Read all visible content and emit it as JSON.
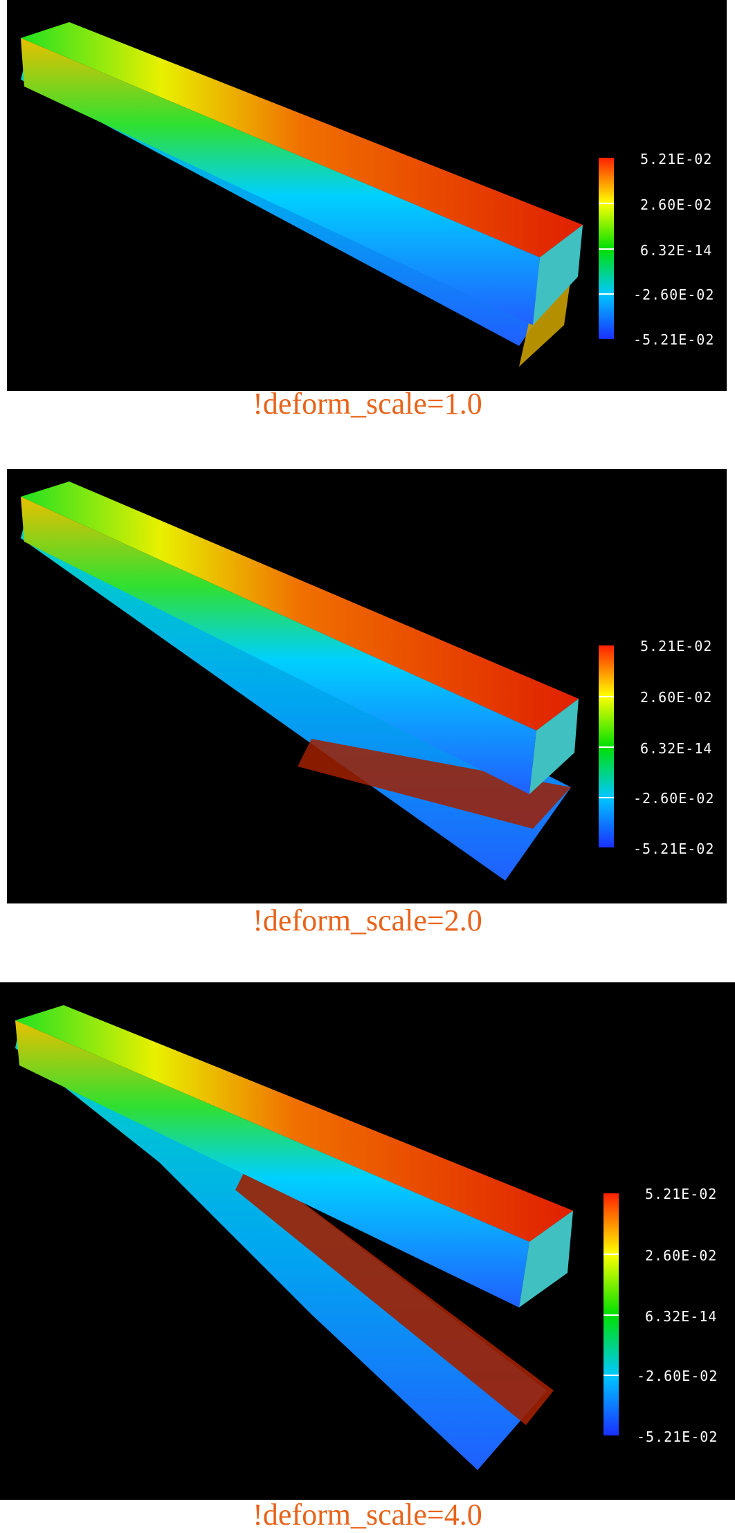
{
  "accent_color": "#E8631A",
  "colormap": [
    "#1a30ff",
    "#00c8ff",
    "#00e000",
    "#ffff00",
    "#ff2000"
  ],
  "panels": [
    {
      "caption": "!deform_scale=1.0",
      "legend": [
        "5.21E-02",
        "2.60E-02",
        "6.32E-14",
        "-2.60E-02",
        "-5.21E-02"
      ]
    },
    {
      "caption": "!deform_scale=2.0",
      "legend": [
        "5.21E-02",
        "2.60E-02",
        "6.32E-14",
        "-2.60E-02",
        "-5.21E-02"
      ]
    },
    {
      "caption": "!deform_scale=4.0",
      "legend": [
        "5.21E-02",
        "2.60E-02",
        "6.32E-14",
        "-2.60E-02",
        "-5.21E-02"
      ]
    }
  ]
}
